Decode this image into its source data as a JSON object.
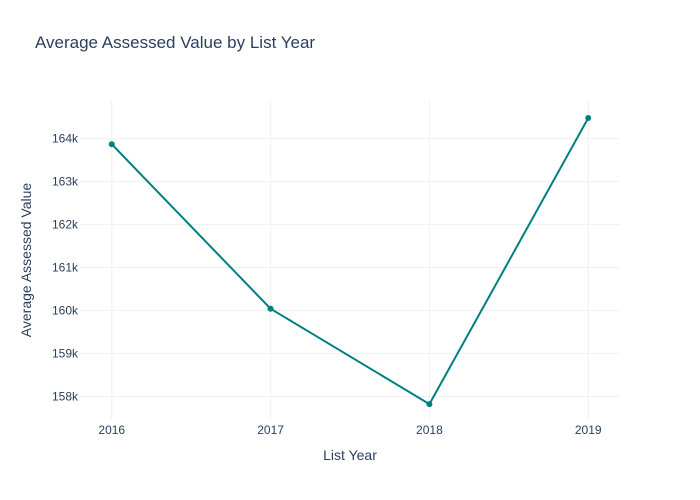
{
  "chart_data": {
    "type": "line",
    "title": "Average Assessed Value by List Year",
    "xlabel": "List Year",
    "ylabel": "Average Assessed Value",
    "x": [
      2016,
      2017,
      2018,
      2019
    ],
    "x_tick_labels": [
      "2016",
      "2017",
      "2018",
      "2019"
    ],
    "series": [
      {
        "values": [
          163870,
          160040,
          157820,
          164480
        ]
      }
    ],
    "ylim": [
      157450,
      164900
    ],
    "y_ticks": [
      158000,
      159000,
      160000,
      161000,
      162000,
      163000,
      164000
    ],
    "y_tick_labels": [
      "158k",
      "159k",
      "160k",
      "161k",
      "162k",
      "163k",
      "164k"
    ],
    "grid": true,
    "line_color": "#007f7f",
    "grid_color": "#eef1f5"
  }
}
